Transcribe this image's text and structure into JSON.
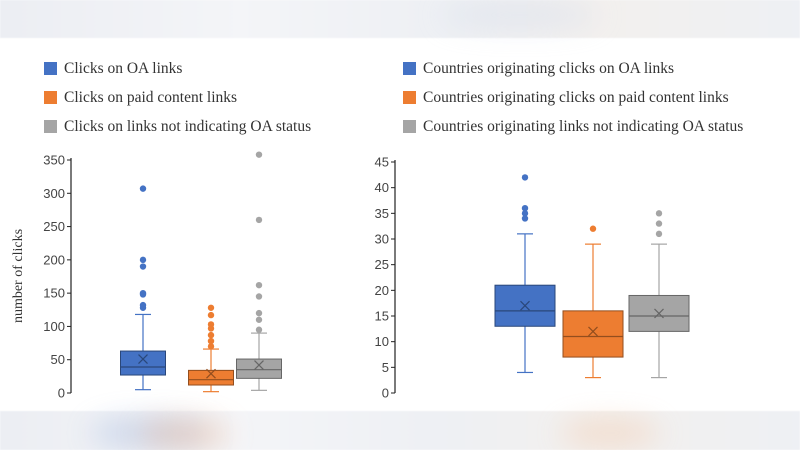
{
  "colors": {
    "blue": "#4472c4",
    "orange": "#ed7d31",
    "gray": "#a5a5a5"
  },
  "chart_data": [
    {
      "type": "box",
      "title": "",
      "xlabel": "",
      "ylabel": "number of clicks",
      "ylim": [
        0,
        350
      ],
      "yticks": [
        0,
        50,
        100,
        150,
        200,
        250,
        300,
        350
      ],
      "legend_position": "top",
      "series": [
        {
          "name": "Clicks on OA links",
          "color": "#4472c4",
          "whisker_low": 5,
          "q1": 27,
          "median": 39,
          "q3": 63,
          "whisker_high": 118,
          "mean": 51,
          "outliers": [
            128,
            132,
            148,
            150,
            190,
            200,
            307
          ]
        },
        {
          "name": "Clicks on paid content links",
          "color": "#ed7d31",
          "whisker_low": 2,
          "q1": 12,
          "median": 20,
          "q3": 34,
          "whisker_high": 66,
          "mean": 29,
          "outliers": [
            70,
            78,
            87,
            97,
            103,
            117,
            128
          ]
        },
        {
          "name": "Clicks on links not indicating OA status",
          "color": "#a5a5a5",
          "whisker_low": 4,
          "q1": 22,
          "median": 35,
          "q3": 51,
          "whisker_high": 90,
          "mean": 42,
          "outliers": [
            95,
            110,
            120,
            145,
            162,
            260,
            358
          ]
        }
      ]
    },
    {
      "type": "box",
      "title": "",
      "xlabel": "",
      "ylabel": "",
      "ylim": [
        0,
        45
      ],
      "yticks": [
        0,
        5,
        10,
        15,
        20,
        25,
        30,
        35,
        40,
        45
      ],
      "legend_position": "top",
      "series": [
        {
          "name": "Countries originating clicks on OA links",
          "color": "#4472c4",
          "whisker_low": 4,
          "q1": 13,
          "median": 16,
          "q3": 21,
          "whisker_high": 31,
          "mean": 17,
          "outliers": [
            34,
            35,
            36,
            42
          ]
        },
        {
          "name": "Countries originating clicks on paid content links",
          "color": "#ed7d31",
          "whisker_low": 3,
          "q1": 7,
          "median": 11,
          "q3": 16,
          "whisker_high": 29,
          "mean": 12,
          "outliers": [
            32
          ]
        },
        {
          "name": "Countries originating links not indicating OA status",
          "color": "#a5a5a5",
          "whisker_low": 3,
          "q1": 12,
          "median": 15,
          "q3": 19,
          "whisker_high": 29,
          "mean": 15.5,
          "outliers": [
            31,
            33,
            35
          ]
        }
      ]
    }
  ]
}
